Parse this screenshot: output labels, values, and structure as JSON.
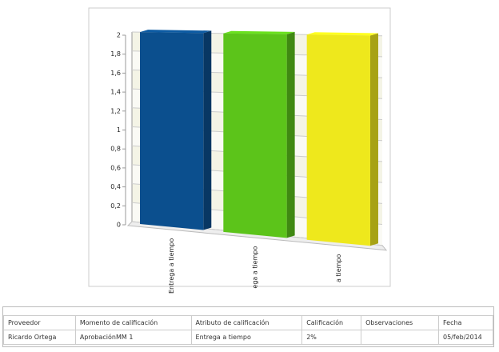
{
  "chart_data": {
    "type": "bar",
    "categories": [
      "Entrega a tiempo",
      "ega a tiempo",
      "a tiempo"
    ],
    "values": [
      2,
      2,
      2
    ],
    "colors": [
      "#0b4f8e",
      "#5cc41a",
      "#eee81c"
    ],
    "ylim": [
      0,
      2
    ],
    "yticks": [
      0,
      {
        "value": 0.2,
        "label": "0,2"
      },
      {
        "value": 0.4,
        "label": "0,4"
      },
      {
        "value": 0.6,
        "label": "0,6"
      },
      {
        "value": 0.8,
        "label": "0,8"
      },
      1,
      {
        "value": 1.2,
        "label": "1,2"
      },
      {
        "value": 1.4,
        "label": "1,4"
      },
      {
        "value": 1.6,
        "label": "1,6"
      },
      {
        "value": 1.8,
        "label": "1,8"
      },
      2
    ],
    "grid": true
  },
  "table": {
    "headers": [
      "Proveedor",
      "Momento de calificación",
      "Atributo de calificación",
      "Calificación",
      "Observaciones",
      "Fecha"
    ],
    "rows": [
      [
        "Ricardo Ortega",
        "AprobaciónMM 1",
        "Entrega a tiempo",
        "2%",
        "",
        "05/feb/2014"
      ]
    ]
  }
}
